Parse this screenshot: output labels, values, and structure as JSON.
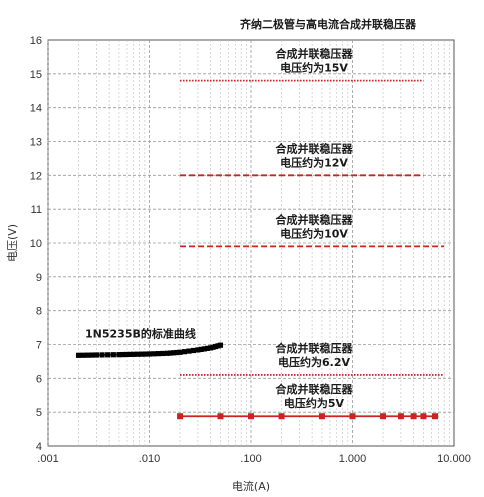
{
  "chart_data": {
    "type": "line",
    "title": "齐纳二极管与高电流合成并联稳压器",
    "xlabel": "电流(A)",
    "ylabel": "电压(V)",
    "x_scale": "log",
    "xlim": [
      0.001,
      10
    ],
    "ylim": [
      4,
      16
    ],
    "x_ticks": [
      ".001",
      ".010",
      ".100",
      "1.000",
      "10.000"
    ],
    "y_ticks": [
      "4",
      "5",
      "6",
      "7",
      "8",
      "9",
      "10",
      "11",
      "12",
      "13",
      "14",
      "15",
      "16"
    ],
    "grid": true,
    "series": [
      {
        "name": "1N5235B的标准曲线",
        "color": "#000000",
        "style": "square-markers",
        "x": [
          0.002,
          0.003,
          0.005,
          0.007,
          0.01,
          0.015,
          0.02,
          0.03,
          0.04,
          0.05
        ],
        "y": [
          6.68,
          6.69,
          6.7,
          6.71,
          6.72,
          6.74,
          6.77,
          6.84,
          6.9,
          6.98
        ]
      },
      {
        "name": "合成并联稳压器 电压约为15V",
        "label_lines": [
          "合成并联稳压器",
          "电压约为15V"
        ],
        "color": "#cc2222",
        "style": "dotted",
        "x": [
          0.02,
          5
        ],
        "y": [
          14.8,
          14.8
        ]
      },
      {
        "name": "合成并联稳压器 电压约为12V",
        "label_lines": [
          "合成并联稳压器",
          "电压约为12V"
        ],
        "color": "#cc2222",
        "style": "dashed",
        "x": [
          0.02,
          5
        ],
        "y": [
          12.0,
          12.0
        ]
      },
      {
        "name": "合成并联稳压器 电压约为10V",
        "label_lines": [
          "合成并联稳压器",
          "电压约为10V"
        ],
        "color": "#cc2222",
        "style": "dashed",
        "x": [
          0.02,
          8
        ],
        "y": [
          9.9,
          9.9
        ]
      },
      {
        "name": "合成并联稳压器 电压约为6.2V",
        "label_lines": [
          "合成并联稳压器",
          "电压约为6.2V"
        ],
        "color": "#cc2222",
        "style": "dotted",
        "x": [
          0.02,
          8
        ],
        "y": [
          6.1,
          6.1
        ]
      },
      {
        "name": "合成并联稳压器 电压约为5V",
        "label_lines": [
          "合成并联稳压器",
          "电压约为5V"
        ],
        "color": "#cc2222",
        "style": "solid-square-markers",
        "x": [
          0.02,
          7
        ],
        "y": [
          4.88,
          4.88
        ],
        "markers_x": [
          0.02,
          0.05,
          0.1,
          0.2,
          0.5,
          1,
          2,
          3,
          4,
          5,
          6.5
        ]
      }
    ]
  }
}
